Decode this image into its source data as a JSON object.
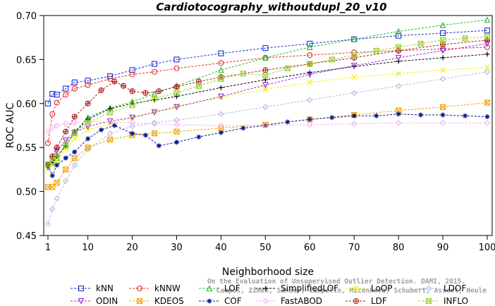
{
  "chart_data": {
    "type": "line",
    "title": "Cardiotocography_withoutdupl_20_v10",
    "xlabel": "Neighborhood size",
    "ylabel": "ROC AUC",
    "xlim": [
      1,
      100
    ],
    "ylim": [
      0.45,
      0.7
    ],
    "x_ticks": [
      1,
      10,
      20,
      30,
      40,
      50,
      60,
      70,
      80,
      90,
      100
    ],
    "y_ticks": [
      0.45,
      0.5,
      0.55,
      0.6,
      0.65,
      0.7
    ],
    "y_tick_labels": [
      "0.45",
      "0.50",
      "0.55",
      "0.60",
      "0.65",
      "0.70"
    ],
    "grid": false,
    "legend_position": "bottom",
    "watermark": [
      "Campos, Zimek, Sander, Campello, Micenkova, Schubert, Assent, Houle",
      "On the Evaluation of Unsupervised Outlier Detection. DAMI, 2015."
    ],
    "series": [
      {
        "name": "kNN",
        "color": "#1f2fd6",
        "marker": "square",
        "x": [
          1,
          2,
          3,
          5,
          7,
          10,
          15,
          20,
          25,
          30,
          40,
          50,
          60,
          70,
          80,
          90,
          100
        ],
        "y": [
          0.6,
          0.611,
          0.61,
          0.617,
          0.624,
          0.626,
          0.631,
          0.638,
          0.645,
          0.65,
          0.657,
          0.663,
          0.668,
          0.673,
          0.677,
          0.68,
          0.683
        ]
      },
      {
        "name": "kNNW",
        "color": "#e03030",
        "marker": "circle",
        "x": [
          1,
          2,
          3,
          5,
          7,
          10,
          15,
          20,
          25,
          30,
          40,
          50,
          60,
          70,
          80,
          90,
          100
        ],
        "y": [
          0.555,
          0.588,
          0.601,
          0.61,
          0.617,
          0.621,
          0.628,
          0.633,
          0.636,
          0.64,
          0.646,
          0.652,
          0.655,
          0.658,
          0.66,
          0.662,
          0.664
        ]
      },
      {
        "name": "LOF",
        "color": "#22bb22",
        "marker": "triangle",
        "x": [
          1,
          2,
          3,
          5,
          7,
          10,
          15,
          20,
          25,
          30,
          40,
          50,
          60,
          70,
          80,
          90,
          100
        ],
        "y": [
          0.531,
          0.533,
          0.538,
          0.552,
          0.568,
          0.584,
          0.595,
          0.602,
          0.611,
          0.62,
          0.638,
          0.652,
          0.664,
          0.673,
          0.682,
          0.689,
          0.695
        ]
      },
      {
        "name": "SimplifiedLOF",
        "color": "#000000",
        "marker": "plus",
        "x": [
          1,
          2,
          3,
          5,
          7,
          10,
          15,
          20,
          25,
          30,
          40,
          50,
          60,
          70,
          80,
          90,
          100
        ],
        "y": [
          0.53,
          0.533,
          0.54,
          0.552,
          0.567,
          0.582,
          0.594,
          0.6,
          0.604,
          0.608,
          0.618,
          0.627,
          0.635,
          0.642,
          0.648,
          0.652,
          0.656
        ]
      },
      {
        "name": "LoOP",
        "color": "#f0f000",
        "marker": "x",
        "x": [
          1,
          2,
          3,
          5,
          7,
          10,
          15,
          20,
          25,
          30,
          40,
          50,
          60,
          70,
          80,
          90,
          100
        ],
        "y": [
          0.525,
          0.53,
          0.535,
          0.548,
          0.56,
          0.57,
          0.577,
          0.584,
          0.591,
          0.597,
          0.607,
          0.616,
          0.624,
          0.63,
          0.634,
          0.638,
          0.641
        ]
      },
      {
        "name": "LDOF",
        "color": "#b8b8e0",
        "marker": "diamond",
        "x": [
          1,
          2,
          3,
          5,
          7,
          10,
          15,
          20,
          25,
          30,
          40,
          50,
          60,
          70,
          80,
          90,
          100
        ],
        "y": [
          0.463,
          0.48,
          0.492,
          0.512,
          0.53,
          0.548,
          0.566,
          0.574,
          0.578,
          0.581,
          0.588,
          0.596,
          0.604,
          0.612,
          0.62,
          0.628,
          0.636
        ]
      },
      {
        "name": "ODIN",
        "color": "#9a2bd6",
        "marker": "triangle-down",
        "x": [
          1,
          2,
          3,
          5,
          7,
          10,
          15,
          20,
          25,
          30,
          40,
          50,
          60,
          70,
          80,
          90,
          100
        ],
        "y": [
          0.528,
          0.537,
          0.546,
          0.558,
          0.567,
          0.574,
          0.58,
          0.584,
          0.59,
          0.596,
          0.608,
          0.621,
          0.633,
          0.643,
          0.652,
          0.66,
          0.668
        ]
      },
      {
        "name": "KDEOS",
        "color": "#f0a000",
        "marker": "square-x",
        "x": [
          1,
          2,
          3,
          5,
          7,
          10,
          15,
          20,
          25,
          30,
          40,
          50,
          60,
          70,
          80,
          90,
          100
        ],
        "y": [
          0.505,
          0.505,
          0.51,
          0.525,
          0.538,
          0.55,
          0.559,
          0.564,
          0.566,
          0.568,
          0.572,
          0.576,
          0.582,
          0.587,
          0.592,
          0.596,
          0.601
        ]
      },
      {
        "name": "COF",
        "color": "#0a1a8f",
        "marker": "asterisk",
        "x": [
          1,
          2,
          3,
          5,
          7,
          10,
          13,
          16,
          20,
          23,
          26,
          30,
          35,
          40,
          45,
          50,
          55,
          60,
          65,
          70,
          75,
          80,
          85,
          90,
          95,
          100
        ],
        "y": [
          0.53,
          0.518,
          0.53,
          0.538,
          0.545,
          0.56,
          0.57,
          0.575,
          0.566,
          0.564,
          0.552,
          0.556,
          0.562,
          0.567,
          0.572,
          0.575,
          0.579,
          0.582,
          0.584,
          0.586,
          0.586,
          0.588,
          0.587,
          0.587,
          0.586,
          0.585
        ]
      },
      {
        "name": "FastABOD",
        "color": "#f4b0f0",
        "marker": "diamond",
        "x": [
          1,
          2,
          3,
          5,
          7,
          10,
          15,
          20,
          25,
          30,
          40,
          50,
          60,
          70,
          80,
          90,
          100
        ],
        "y": [
          0.568,
          0.572,
          0.575,
          0.577,
          0.578,
          0.579,
          0.579,
          0.578,
          0.577,
          0.576,
          0.575,
          0.575,
          0.576,
          0.577,
          0.578,
          0.578,
          0.578
        ]
      },
      {
        "name": "LDF",
        "color": "#b02020",
        "marker": "circle-plus",
        "x": [
          1,
          2,
          3,
          5,
          7,
          10,
          13,
          16,
          18,
          20,
          23,
          26,
          30,
          35,
          40,
          50,
          60,
          70,
          80,
          90,
          100
        ],
        "y": [
          0.53,
          0.54,
          0.55,
          0.568,
          0.585,
          0.6,
          0.615,
          0.625,
          0.62,
          0.614,
          0.612,
          0.614,
          0.619,
          0.625,
          0.63,
          0.638,
          0.645,
          0.652,
          0.66,
          0.667,
          0.672
        ]
      },
      {
        "name": "INFLO",
        "color": "#9acd32",
        "marker": "square-x",
        "x": [
          1,
          2,
          3,
          5,
          7,
          10,
          15,
          20,
          25,
          30,
          35,
          40,
          45,
          50,
          55,
          60,
          65,
          70,
          75,
          80,
          85,
          90,
          95,
          100
        ],
        "y": [
          0.531,
          0.535,
          0.54,
          0.553,
          0.566,
          0.578,
          0.59,
          0.598,
          0.606,
          0.612,
          0.62,
          0.628,
          0.634,
          0.632,
          0.64,
          0.645,
          0.65,
          0.655,
          0.66,
          0.664,
          0.668,
          0.672,
          0.674,
          0.676
        ]
      }
    ]
  }
}
